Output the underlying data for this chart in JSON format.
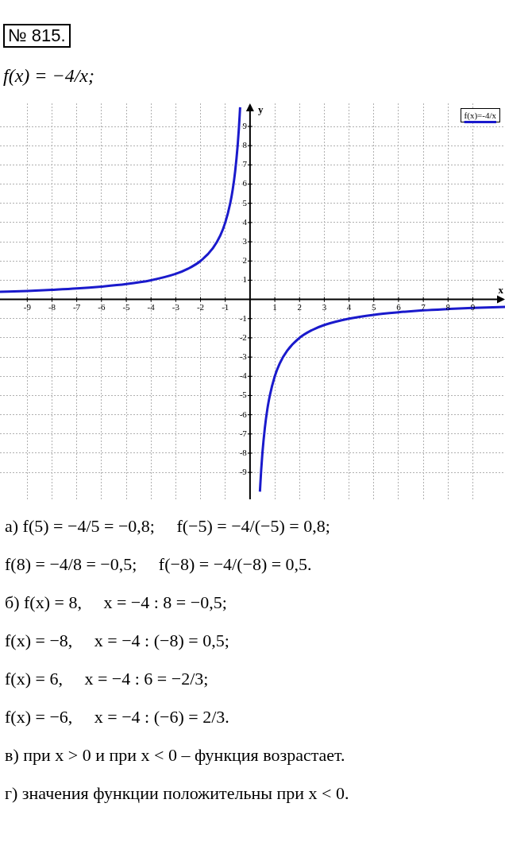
{
  "chart_data": {
    "type": "line",
    "title": "№ 815.",
    "subtitle": "f(x) = −4/x;",
    "xlabel": "x",
    "ylabel": "y",
    "series": [
      {
        "name": "f(x)=-4/x",
        "color": "#1a1acc",
        "x": [
          -10.1,
          -9,
          -8,
          -7,
          -6,
          -5,
          -4,
          -3,
          -2.5,
          -2,
          -1.5,
          -1.2,
          -1,
          -0.8,
          -0.7,
          -0.6,
          -0.5,
          -0.45,
          -0.4,
          0,
          0.4,
          0.45,
          0.5,
          0.6,
          0.7,
          0.8,
          1,
          1.2,
          1.5,
          2,
          2.5,
          3,
          4,
          5,
          6,
          7,
          8,
          9,
          10.3
        ],
        "values": [
          0.4,
          0.44,
          0.5,
          0.57,
          0.67,
          0.8,
          1,
          1.33,
          1.6,
          2,
          2.67,
          3.33,
          4,
          5,
          5.71,
          6.67,
          8,
          8.89,
          10,
          null,
          -10,
          -8.89,
          -8,
          -6.67,
          -5.71,
          -5,
          -4,
          -3.33,
          -2.67,
          -2,
          -1.6,
          -1.33,
          -1,
          -0.8,
          -0.67,
          -0.57,
          -0.5,
          -0.44,
          -0.39
        ]
      }
    ],
    "xlim": [
      -10.1,
      10.3
    ],
    "ylim": [
      -10.4,
      10.2
    ],
    "xticks": [
      -9,
      -8,
      -7,
      -6,
      -5,
      -4,
      -3,
      -2,
      -1,
      1,
      2,
      3,
      4,
      5,
      6,
      7,
      8,
      9
    ],
    "yticks": [
      -9,
      -8,
      -7,
      -6,
      -5,
      -4,
      -3,
      -2,
      -1,
      1,
      2,
      3,
      4,
      5,
      6,
      7,
      8,
      9
    ],
    "grid": true,
    "legend": "top right",
    "marker": "none",
    "line_style": "solid",
    "annotations": [
      "а) f(5) = −4/5 = −0,8;     f(−5) = −4/(−5) = 0,8;",
      "f(8) = −4/8 = −0,5;     f(−8) = −4/(−8) = 0,5.",
      "б) f(x) = 8,     x = −4 : 8 = −0,5;",
      "f(x) = −8,     x = −4 : (−8) = 0,5;",
      "f(x) = 6,     x = −4 : 6 = −2/3;",
      "f(x) = −6,     x = −4 : (−6) = 2/3.",
      "в) при x > 0 и при x < 0 – функция возрастает.",
      "г) значения функции положительны при x < 0."
    ]
  }
}
